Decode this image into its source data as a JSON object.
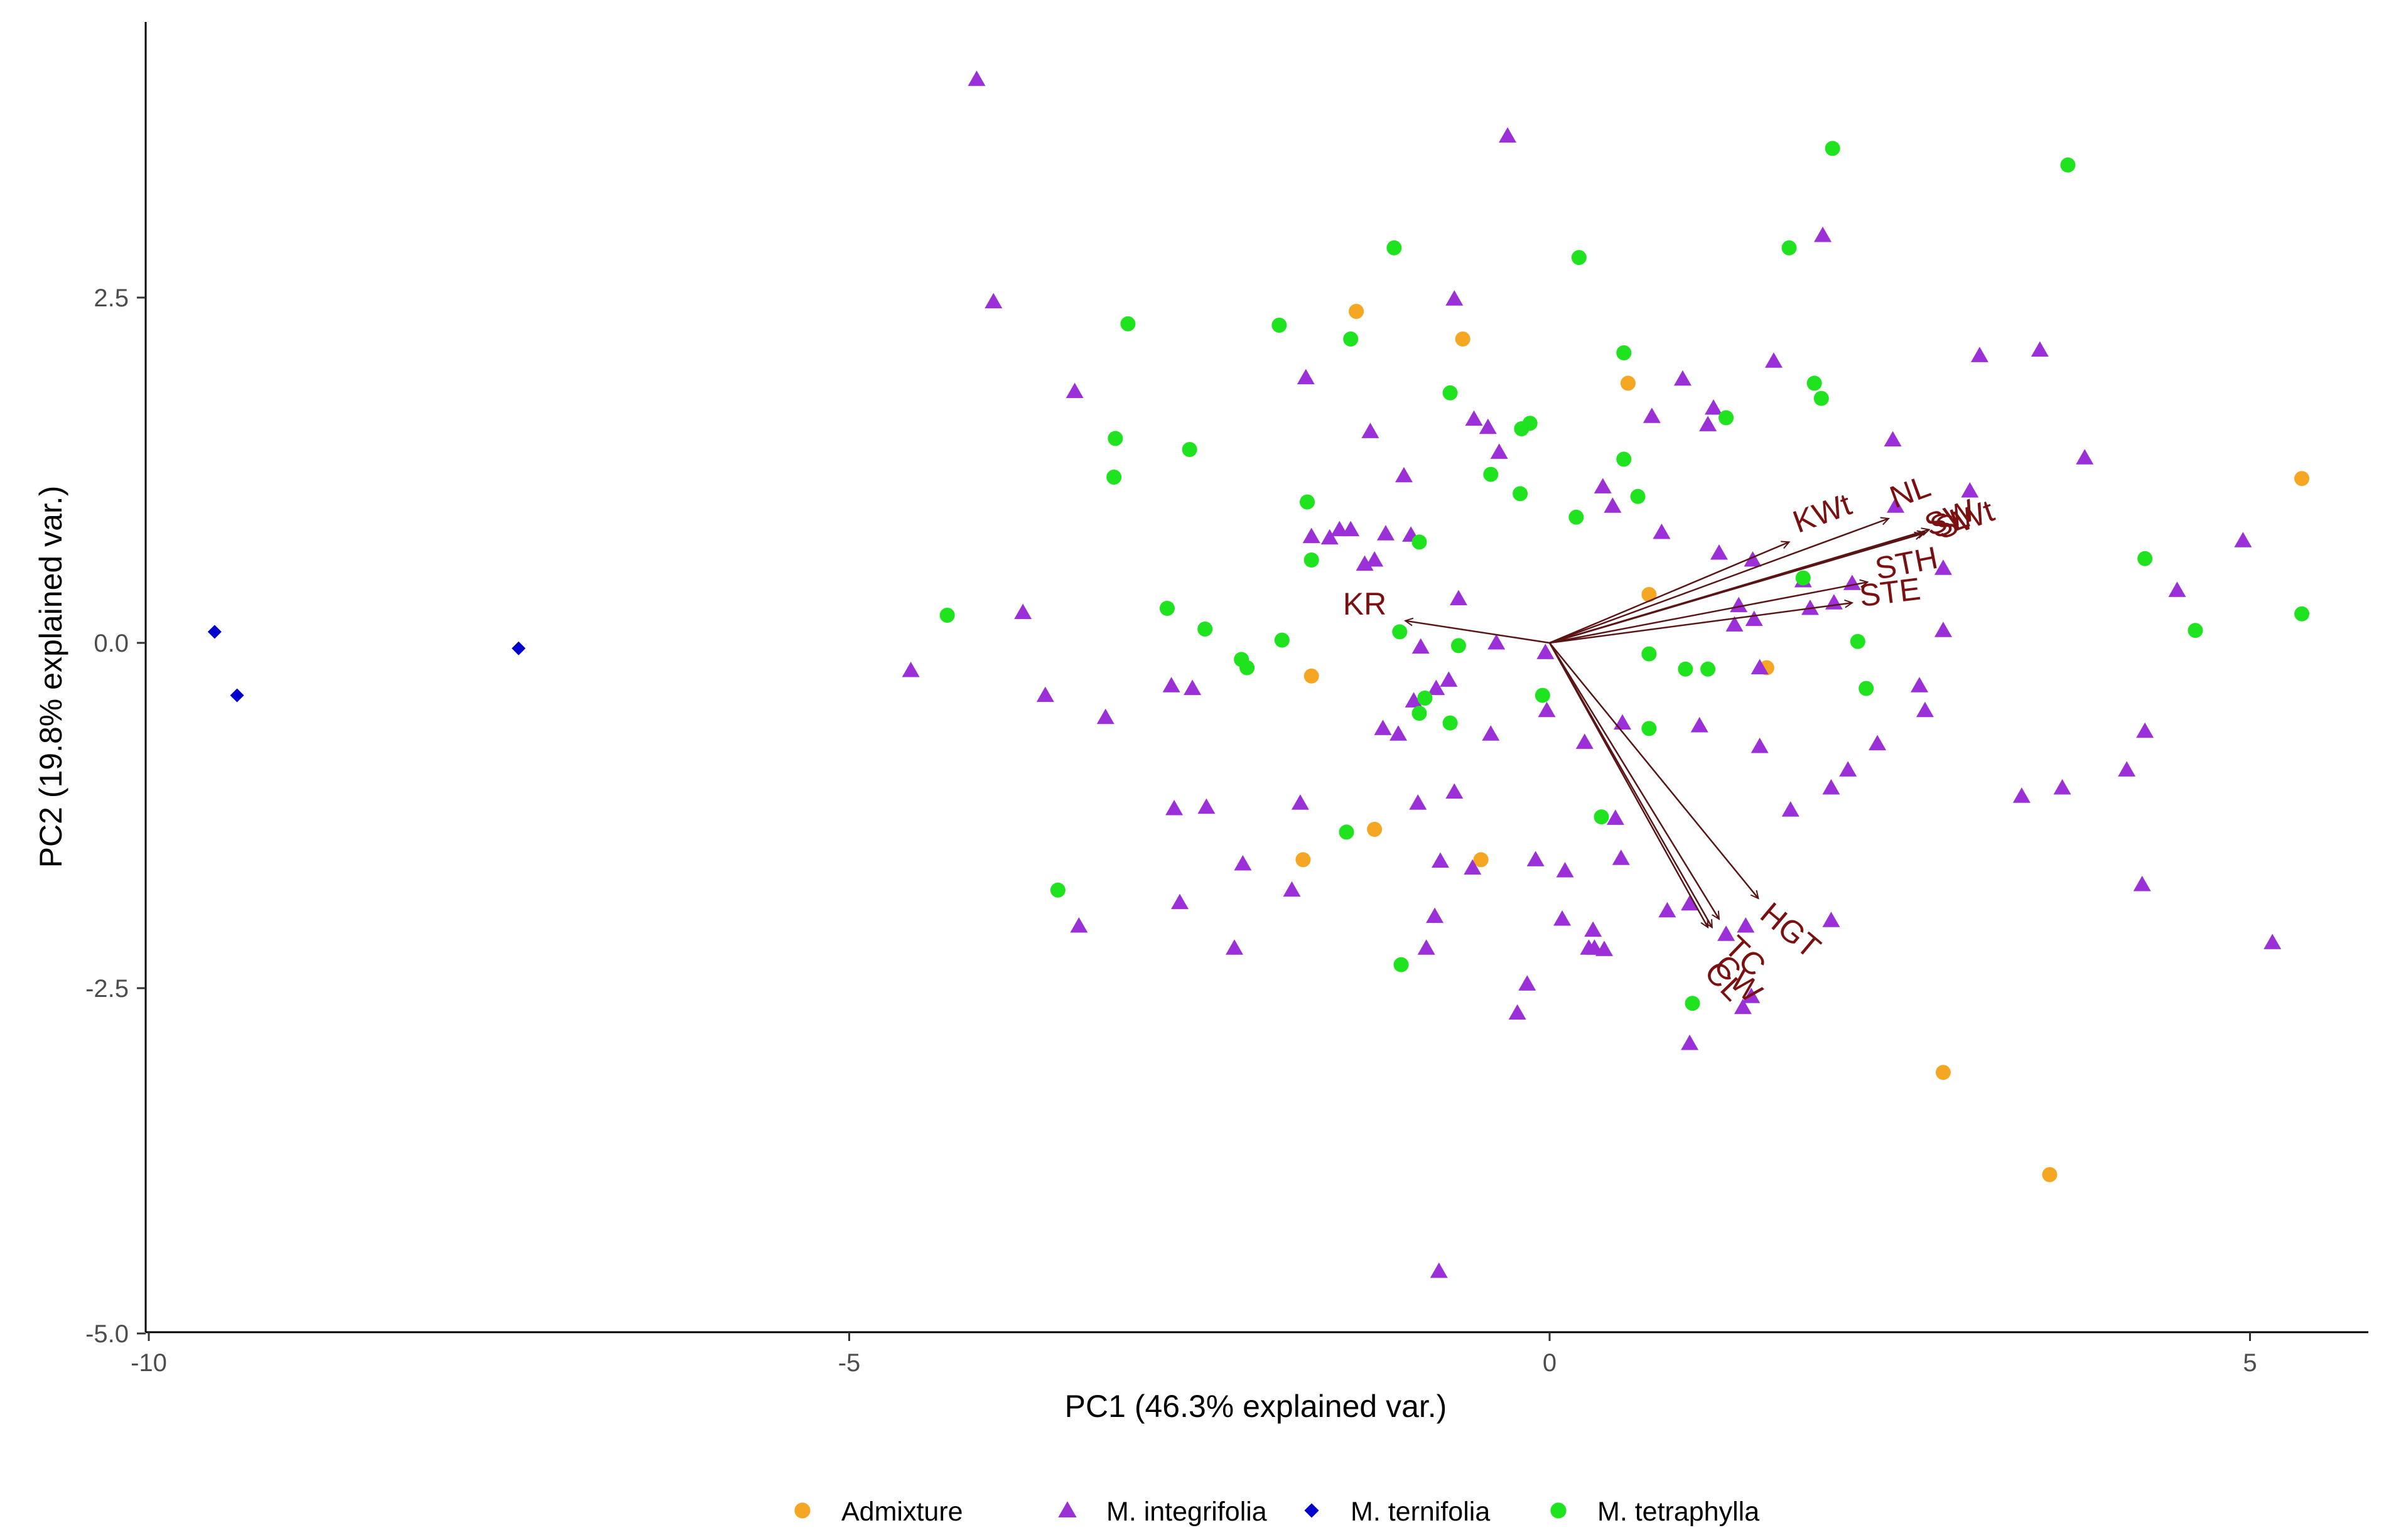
{
  "chart_data": {
    "type": "scatter",
    "subtype": "pca-biplot",
    "title": "",
    "xlabel": "PC1 (46.3% explained var.)",
    "ylabel": "PC2 (19.8% explained var.)",
    "xlim": [
      -10.2,
      6.0
    ],
    "ylim": [
      -5.0,
      4.3
    ],
    "xticks": [
      {
        "value": -10,
        "label": "-10"
      },
      {
        "value": -5,
        "label": "-5"
      },
      {
        "value": 0,
        "label": "0"
      },
      {
        "value": 5,
        "label": "5"
      }
    ],
    "yticks": [
      {
        "value": -5.0,
        "label": "-5.0"
      },
      {
        "value": -2.5,
        "label": "-2.5"
      },
      {
        "value": 0.0,
        "label": "0.0"
      },
      {
        "value": 2.5,
        "label": "2.5"
      }
    ],
    "grid": false,
    "legend_position": "bottom",
    "series": [
      {
        "name": "Admixture",
        "color": "#F5A623",
        "marker": "circle",
        "points": [
          [
            -1.38,
            2.4
          ],
          [
            -0.62,
            2.2
          ],
          [
            0.56,
            1.88
          ],
          [
            0.71,
            0.35
          ],
          [
            -1.7,
            -0.24
          ],
          [
            1.55,
            -0.18
          ],
          [
            -1.25,
            -1.35
          ],
          [
            -1.76,
            -1.57
          ],
          [
            -0.49,
            -1.57
          ],
          [
            2.81,
            -3.11
          ],
          [
            3.57,
            -3.85
          ],
          [
            5.37,
            1.19
          ]
        ]
      },
      {
        "name": "M. integrifolia",
        "color": "#9B30D9",
        "marker": "triangle",
        "points": [
          [
            -4.09,
            4.08
          ],
          [
            -3.97,
            2.47
          ],
          [
            -3.39,
            1.82
          ],
          [
            -3.76,
            0.22
          ],
          [
            -4.56,
            -0.2
          ],
          [
            -3.6,
            -0.38
          ],
          [
            -3.17,
            -0.54
          ],
          [
            -2.7,
            -0.31
          ],
          [
            -2.55,
            -0.33
          ],
          [
            -2.68,
            -1.2
          ],
          [
            -2.45,
            -1.19
          ],
          [
            -2.64,
            -1.88
          ],
          [
            -2.19,
            -1.6
          ],
          [
            -1.84,
            -1.79
          ],
          [
            -2.25,
            -2.21
          ],
          [
            -3.36,
            -2.05
          ],
          [
            -1.74,
            1.92
          ],
          [
            -1.5,
            0.82
          ],
          [
            -1.7,
            0.77
          ],
          [
            -1.57,
            0.76
          ],
          [
            -1.42,
            0.82
          ],
          [
            -1.32,
            0.57
          ],
          [
            -1.25,
            0.6
          ],
          [
            -1.17,
            0.79
          ],
          [
            -1.04,
            1.21
          ],
          [
            -0.99,
            0.78
          ],
          [
            -1.28,
            1.53
          ],
          [
            -0.68,
            2.49
          ],
          [
            -0.54,
            1.62
          ],
          [
            -0.44,
            1.56
          ],
          [
            -0.36,
            1.38
          ],
          [
            -0.65,
            0.32
          ],
          [
            -0.92,
            -0.03
          ],
          [
            -0.72,
            -0.27
          ],
          [
            -0.81,
            -0.33
          ],
          [
            -0.97,
            -0.42
          ],
          [
            -1.19,
            -0.62
          ],
          [
            -1.08,
            -0.66
          ],
          [
            -0.42,
            -0.66
          ],
          [
            -0.38,
            0.0
          ],
          [
            -0.03,
            -0.07
          ],
          [
            -0.02,
            -0.49
          ],
          [
            0.25,
            -0.72
          ],
          [
            0.52,
            -0.58
          ],
          [
            -0.68,
            -1.08
          ],
          [
            -0.94,
            -1.16
          ],
          [
            -1.78,
            -1.16
          ],
          [
            -0.78,
            -1.58
          ],
          [
            -0.55,
            -1.63
          ],
          [
            -0.82,
            -1.98
          ],
          [
            -0.88,
            -2.21
          ],
          [
            -0.1,
            -1.57
          ],
          [
            0.11,
            -1.65
          ],
          [
            0.09,
            -2.0
          ],
          [
            0.31,
            -2.08
          ],
          [
            0.47,
            -1.27
          ],
          [
            0.51,
            -1.56
          ],
          [
            0.32,
            -2.21
          ],
          [
            0.28,
            -2.21
          ],
          [
            0.39,
            -2.22
          ],
          [
            -0.16,
            -2.47
          ],
          [
            -0.23,
            -2.68
          ],
          [
            -0.79,
            -4.55
          ],
          [
            -0.3,
            3.67
          ],
          [
            0.38,
            1.13
          ],
          [
            0.45,
            0.99
          ],
          [
            0.8,
            0.8
          ],
          [
            0.95,
            1.91
          ],
          [
            0.73,
            1.64
          ],
          [
            1.17,
            1.7
          ],
          [
            1.13,
            1.58
          ],
          [
            1.6,
            2.04
          ],
          [
            1.95,
            2.95
          ],
          [
            2.45,
            1.47
          ],
          [
            3.07,
            2.08
          ],
          [
            3.5,
            2.12
          ],
          [
            3.82,
            1.34
          ],
          [
            2.47,
            0.99
          ],
          [
            3.0,
            1.1
          ],
          [
            1.21,
            0.65
          ],
          [
            1.45,
            0.6
          ],
          [
            1.35,
            0.27
          ],
          [
            1.46,
            0.17
          ],
          [
            1.32,
            0.13
          ],
          [
            1.86,
            0.25
          ],
          [
            1.81,
            0.45
          ],
          [
            2.16,
            0.43
          ],
          [
            2.03,
            0.29
          ],
          [
            2.81,
            0.54
          ],
          [
            2.81,
            0.09
          ],
          [
            2.64,
            -0.31
          ],
          [
            1.5,
            -0.18
          ],
          [
            1.07,
            -0.6
          ],
          [
            1.5,
            -0.75
          ],
          [
            2.13,
            -0.92
          ],
          [
            2.34,
            -0.73
          ],
          [
            2.01,
            -1.05
          ],
          [
            2.01,
            -2.01
          ],
          [
            1.72,
            -1.21
          ],
          [
            1.0,
            -1.89
          ],
          [
            0.84,
            -1.94
          ],
          [
            1.4,
            -2.05
          ],
          [
            1.26,
            -2.11
          ],
          [
            1.44,
            -2.56
          ],
          [
            1.38,
            -2.64
          ],
          [
            1.0,
            -2.9
          ],
          [
            2.68,
            -0.49
          ],
          [
            3.37,
            -1.11
          ],
          [
            3.66,
            -1.05
          ],
          [
            4.25,
            -0.64
          ],
          [
            4.12,
            -0.92
          ],
          [
            4.23,
            -1.75
          ],
          [
            5.16,
            -2.17
          ],
          [
            4.48,
            0.38
          ],
          [
            4.95,
            0.74
          ]
        ]
      },
      {
        "name": "M. ternifolia",
        "color": "#0000CC",
        "marker": "diamond",
        "points": [
          [
            -9.53,
            0.08
          ],
          [
            -9.37,
            -0.38
          ],
          [
            -7.36,
            -0.04
          ]
        ]
      },
      {
        "name": "M. tetraphylla",
        "color": "#1EE31E",
        "marker": "circle",
        "points": [
          [
            -3.01,
            2.31
          ],
          [
            -2.57,
            1.4
          ],
          [
            -3.1,
            1.48
          ],
          [
            -3.11,
            1.2
          ],
          [
            -4.3,
            0.2
          ],
          [
            -2.73,
            0.25
          ],
          [
            -2.46,
            0.1
          ],
          [
            -2.2,
            -0.12
          ],
          [
            -2.16,
            -0.18
          ],
          [
            -1.91,
            0.02
          ],
          [
            -1.7,
            0.6
          ],
          [
            -1.73,
            1.02
          ],
          [
            -1.93,
            2.3
          ],
          [
            -1.42,
            2.2
          ],
          [
            -1.11,
            2.86
          ],
          [
            -0.93,
            0.73
          ],
          [
            -1.07,
            0.08
          ],
          [
            -0.65,
            -0.02
          ],
          [
            -0.89,
            -0.4
          ],
          [
            -0.93,
            -0.51
          ],
          [
            -0.71,
            -0.58
          ],
          [
            -0.05,
            -0.38
          ],
          [
            -1.45,
            -1.37
          ],
          [
            -3.51,
            -1.79
          ],
          [
            -1.06,
            -2.33
          ],
          [
            -0.71,
            1.81
          ],
          [
            -0.42,
            1.22
          ],
          [
            -0.2,
            1.55
          ],
          [
            -0.14,
            1.59
          ],
          [
            -0.21,
            1.08
          ],
          [
            0.21,
            2.79
          ],
          [
            0.53,
            2.1
          ],
          [
            0.53,
            1.33
          ],
          [
            0.63,
            1.06
          ],
          [
            0.19,
            0.91
          ],
          [
            0.71,
            -0.08
          ],
          [
            0.97,
            -0.19
          ],
          [
            1.13,
            -0.19
          ],
          [
            0.71,
            -0.62
          ],
          [
            0.37,
            -1.26
          ],
          [
            1.26,
            1.63
          ],
          [
            1.89,
            1.88
          ],
          [
            1.94,
            1.77
          ],
          [
            1.71,
            2.86
          ],
          [
            2.02,
            3.58
          ],
          [
            3.7,
            3.46
          ],
          [
            1.81,
            0.47
          ],
          [
            2.2,
            0.01
          ],
          [
            2.26,
            -0.33
          ],
          [
            1.02,
            -2.61
          ],
          [
            4.25,
            0.61
          ],
          [
            4.61,
            0.09
          ],
          [
            5.37,
            0.21
          ]
        ]
      }
    ],
    "loadings": [
      {
        "label": "KR",
        "end": [
          -1.03,
          0.16
        ]
      },
      {
        "label": "KWt",
        "end": [
          1.71,
          0.73
        ]
      },
      {
        "label": "NL",
        "end": [
          2.42,
          0.9
        ]
      },
      {
        "label": "SW",
        "end": [
          2.66,
          0.79
        ]
      },
      {
        "label": "SL",
        "end": [
          2.68,
          0.8
        ]
      },
      {
        "label": "SWt",
        "end": [
          2.71,
          0.82
        ]
      },
      {
        "label": "STH",
        "end": [
          2.27,
          0.44
        ]
      },
      {
        "label": "STE",
        "end": [
          2.16,
          0.29
        ]
      },
      {
        "label": "HGT",
        "end": [
          1.49,
          -1.85
        ]
      },
      {
        "label": "TC",
        "end": [
          1.21,
          -2.0
        ]
      },
      {
        "label": "CW",
        "end": [
          1.16,
          -2.06
        ]
      },
      {
        "label": "CL",
        "end": [
          1.13,
          -2.06
        ]
      }
    ],
    "legend": [
      {
        "label": "Admixture",
        "color": "#F5A623",
        "marker": "circle"
      },
      {
        "label": "M. integrifolia",
        "color": "#9B30D9",
        "marker": "triangle"
      },
      {
        "label": "M. ternifolia",
        "color": "#0000CC",
        "marker": "diamond"
      },
      {
        "label": "M. tetraphylla",
        "color": "#1EE31E",
        "marker": "circle"
      }
    ],
    "loading_color": "#5A1414",
    "loading_label_color": "#7A1010"
  }
}
